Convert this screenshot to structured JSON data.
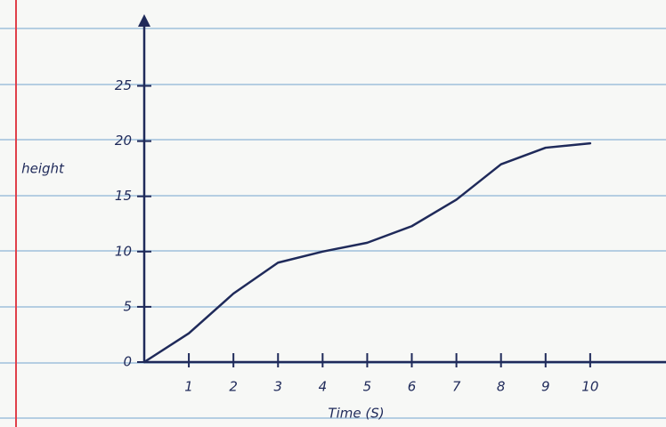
{
  "chart_data": {
    "type": "line",
    "x_label": "Time (S)",
    "y_label": "height",
    "x": [
      0,
      1,
      2,
      3,
      4,
      5,
      6,
      7,
      8,
      9,
      10
    ],
    "series": [
      {
        "color": "#1f2a5a",
        "values": [
          0,
          2.6,
          6.2,
          9,
          10,
          10.8,
          12.3,
          14.7,
          17.9,
          19.4,
          19.8
        ]
      }
    ],
    "xlim": [
      0,
      11.7
    ],
    "ylim": [
      0,
      31
    ],
    "xticks": [
      1,
      2,
      3,
      4,
      5,
      6,
      7,
      8,
      9,
      10
    ],
    "yticks": [
      0,
      5,
      10,
      15,
      20,
      25
    ]
  }
}
